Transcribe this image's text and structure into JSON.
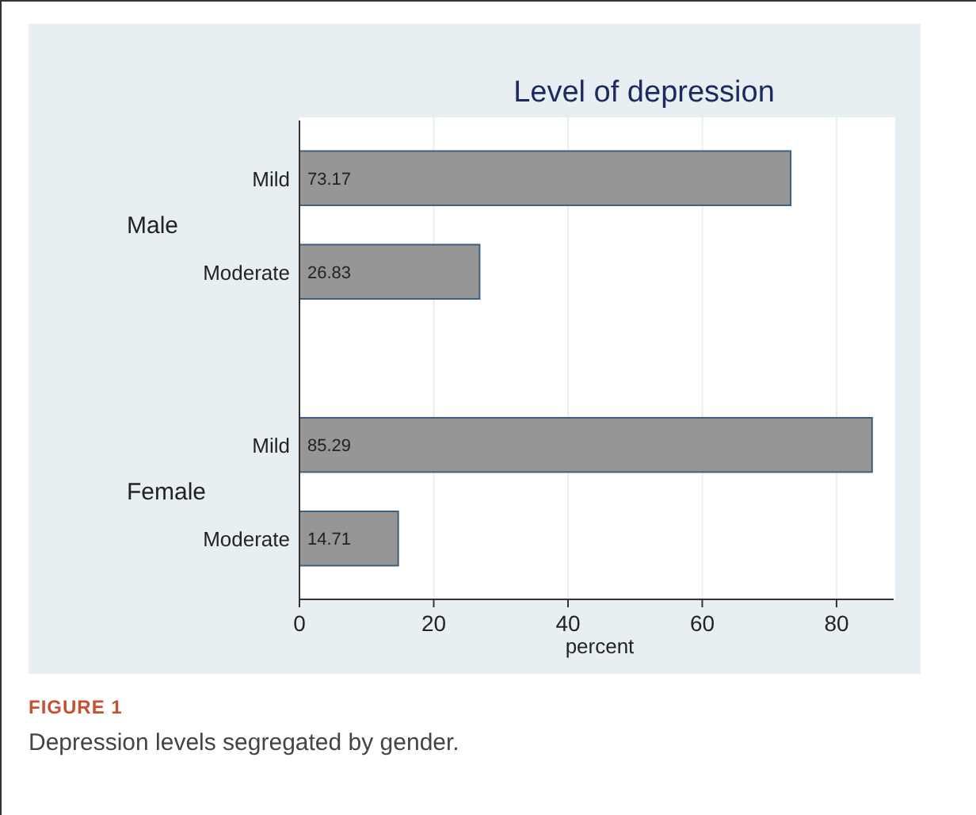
{
  "chart_data": {
    "type": "bar",
    "orientation": "horizontal",
    "title": "Level of depression",
    "xlabel": "percent",
    "categories": [
      "Mild",
      "Moderate",
      "Mild",
      "Moderate"
    ],
    "values": [
      73.17,
      26.83,
      85.29,
      14.71
    ],
    "color": "#969696",
    "xlim": [
      0,
      88.5
    ],
    "xticks": [
      0,
      20,
      40,
      60,
      80
    ],
    "grid": "x",
    "data_labels": true,
    "annotations": [
      "Male",
      "Female",
      "FIGURE 1",
      "Depression levels segregated by gender."
    ]
  }
}
